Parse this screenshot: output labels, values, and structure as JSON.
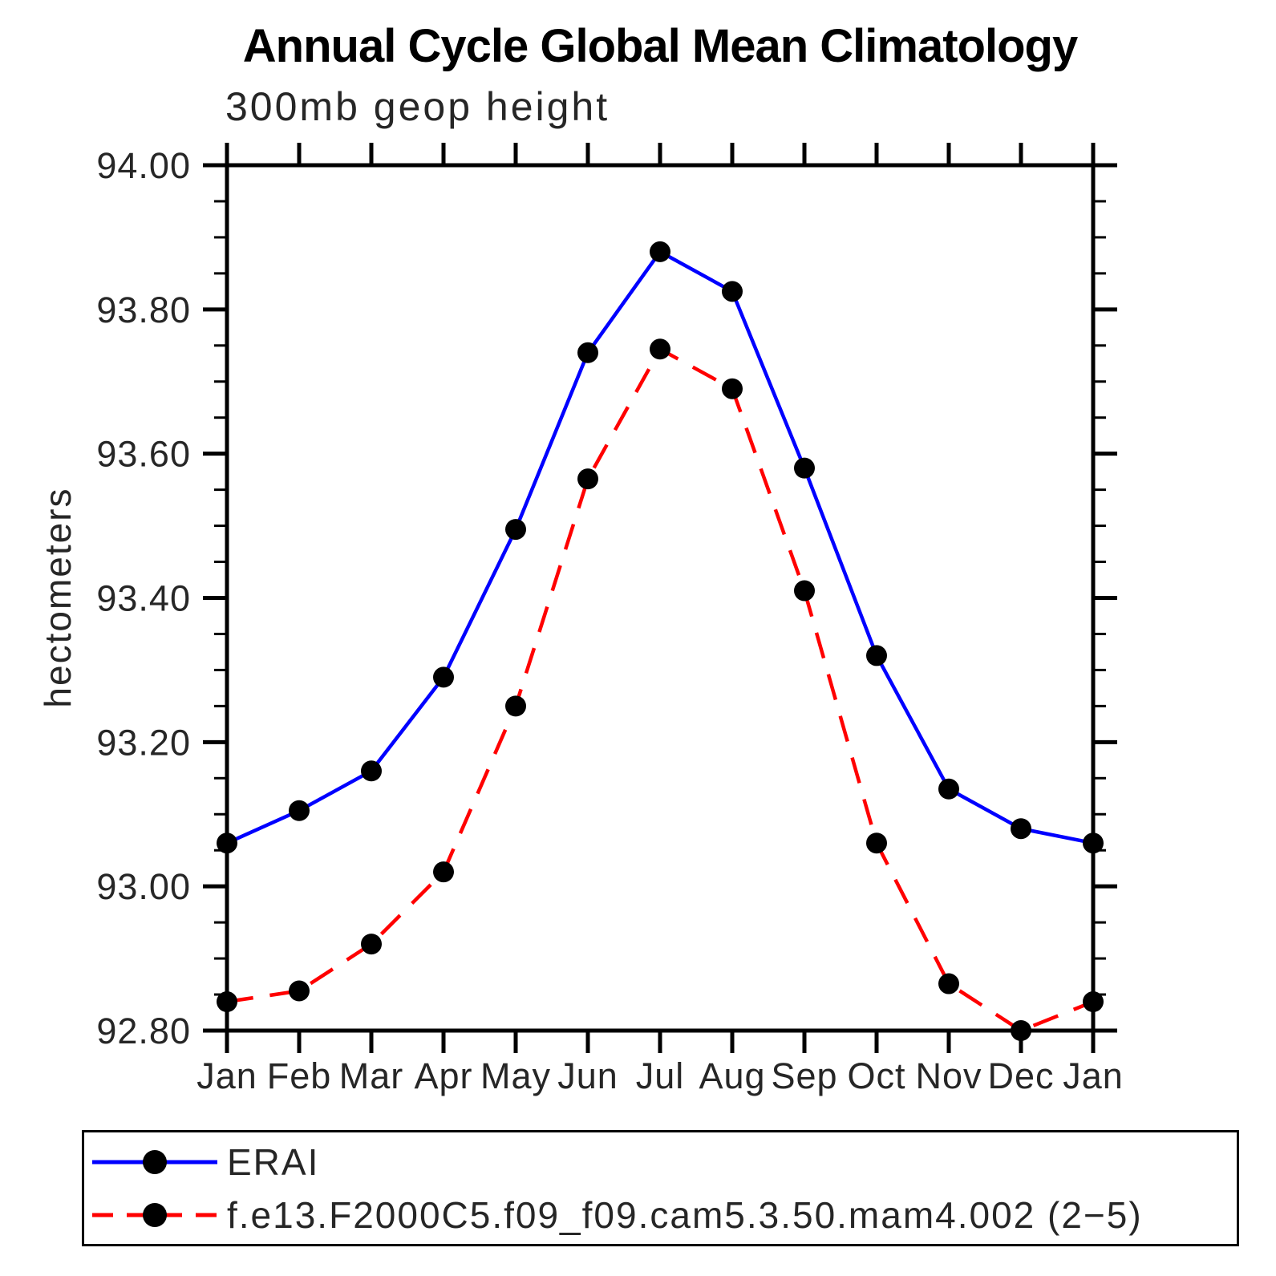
{
  "page": {
    "background": "#ffffff"
  },
  "chart_data": {
    "type": "line",
    "title": "Annual Cycle Global Mean Climatology",
    "subtitle": "300mb geop height",
    "ylabel": "hectometers",
    "xlabel": "",
    "categories": [
      "Jan",
      "Feb",
      "Mar",
      "Apr",
      "May",
      "Jun",
      "Jul",
      "Aug",
      "Sep",
      "Oct",
      "Nov",
      "Dec",
      "Jan"
    ],
    "ylim": [
      92.8,
      94.0
    ],
    "ytick_major": 0.2,
    "ytick_minor": 0.05,
    "ytick_labels": [
      "92.80",
      "93.00",
      "93.20",
      "93.40",
      "93.60",
      "93.80",
      "94.00"
    ],
    "grid": false,
    "axis_color": "#000000",
    "legend_position": "bottom-left-box",
    "series": [
      {
        "name": "ERAI",
        "color": "#0000ff",
        "line_style": "solid",
        "marker": "filled-circle",
        "marker_color": "#000000",
        "values": [
          93.06,
          93.105,
          93.16,
          93.29,
          93.495,
          93.74,
          93.88,
          93.825,
          93.58,
          93.32,
          93.135,
          93.08,
          93.06
        ]
      },
      {
        "name": "f.e13.F2000C5.f09_f09.cam5.3.50.mam4.002 (2−5)",
        "color": "#ff0000",
        "line_style": "dashed",
        "marker": "filled-circle",
        "marker_color": "#000000",
        "values": [
          92.84,
          92.855,
          92.92,
          93.02,
          93.25,
          93.565,
          93.745,
          93.69,
          93.41,
          93.06,
          92.865,
          92.8,
          92.84
        ]
      }
    ]
  }
}
